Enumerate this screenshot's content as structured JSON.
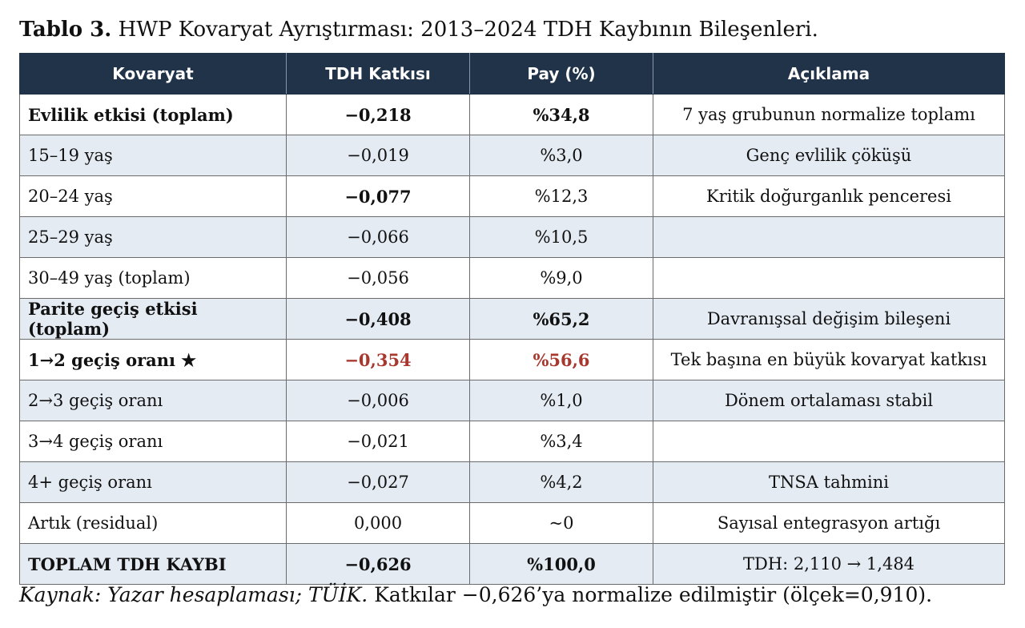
{
  "caption": {
    "label": "Tablo 3.",
    "text": "HWP Kovaryat Ayrıştırması: 2013–2024 TDH Kaybının Bileşenleri."
  },
  "table": {
    "headers": [
      "Kovaryat",
      "TDH Katkısı",
      "Pay (%)",
      "Açıklama"
    ],
    "rows": [
      {
        "kovaryat": "Evlilik etkisi (toplam)",
        "katki": "−0,218",
        "pay": "%34,8",
        "aciklama": "7 yaş grubunun normalize toplamı"
      },
      {
        "kovaryat": "15–19 yaş",
        "katki": "−0,019",
        "pay": "%3,0",
        "aciklama": "Genç evlilik çöküşü"
      },
      {
        "kovaryat": "20–24 yaş",
        "katki": "−0,077",
        "pay": "%12,3",
        "aciklama": "Kritik doğurganlık penceresi"
      },
      {
        "kovaryat": "25–29 yaş",
        "katki": "−0,066",
        "pay": "%10,5",
        "aciklama": ""
      },
      {
        "kovaryat": "30–49 yaş (toplam)",
        "katki": "−0,056",
        "pay": "%9,0",
        "aciklama": ""
      },
      {
        "kovaryat": "Parite geçiş etkisi (toplam)",
        "katki": "−0,408",
        "pay": "%65,2",
        "aciklama": "Davranışsal değişim bileşeni"
      },
      {
        "kovaryat": "1→2 geçiş oranı ★",
        "katki": "−0,354",
        "pay": "%56,6",
        "aciklama": "Tek başına en büyük kovaryat katkısı"
      },
      {
        "kovaryat": "2→3 geçiş oranı",
        "katki": "−0,006",
        "pay": "%1,0",
        "aciklama": "Dönem ortalaması stabil"
      },
      {
        "kovaryat": "3→4 geçiş oranı",
        "katki": "−0,021",
        "pay": "%3,4",
        "aciklama": ""
      },
      {
        "kovaryat": "4+ geçiş oranı",
        "katki": "−0,027",
        "pay": "%4,2",
        "aciklama": "TNSA tahmini"
      },
      {
        "kovaryat": "Artık (residual)",
        "katki": "0,000",
        "pay": "~0",
        "aciklama": "Sayısal entegrasyon artığı"
      },
      {
        "kovaryat": "TOPLAM TDH KAYBI",
        "katki": "−0,626",
        "pay": "%100,0",
        "aciklama": "TDH: 2,110 → 1,484"
      }
    ]
  },
  "source": {
    "label": "Kaynak: Yazar hesaplaması; TÜİK.",
    "text": "Katkılar −0,626’ya normalize edilmiştir (ölçek=0,910)."
  },
  "colors": {
    "header_bg": "#213349",
    "alt_row": "#e4ebf3",
    "highlight": "#a8372e"
  }
}
